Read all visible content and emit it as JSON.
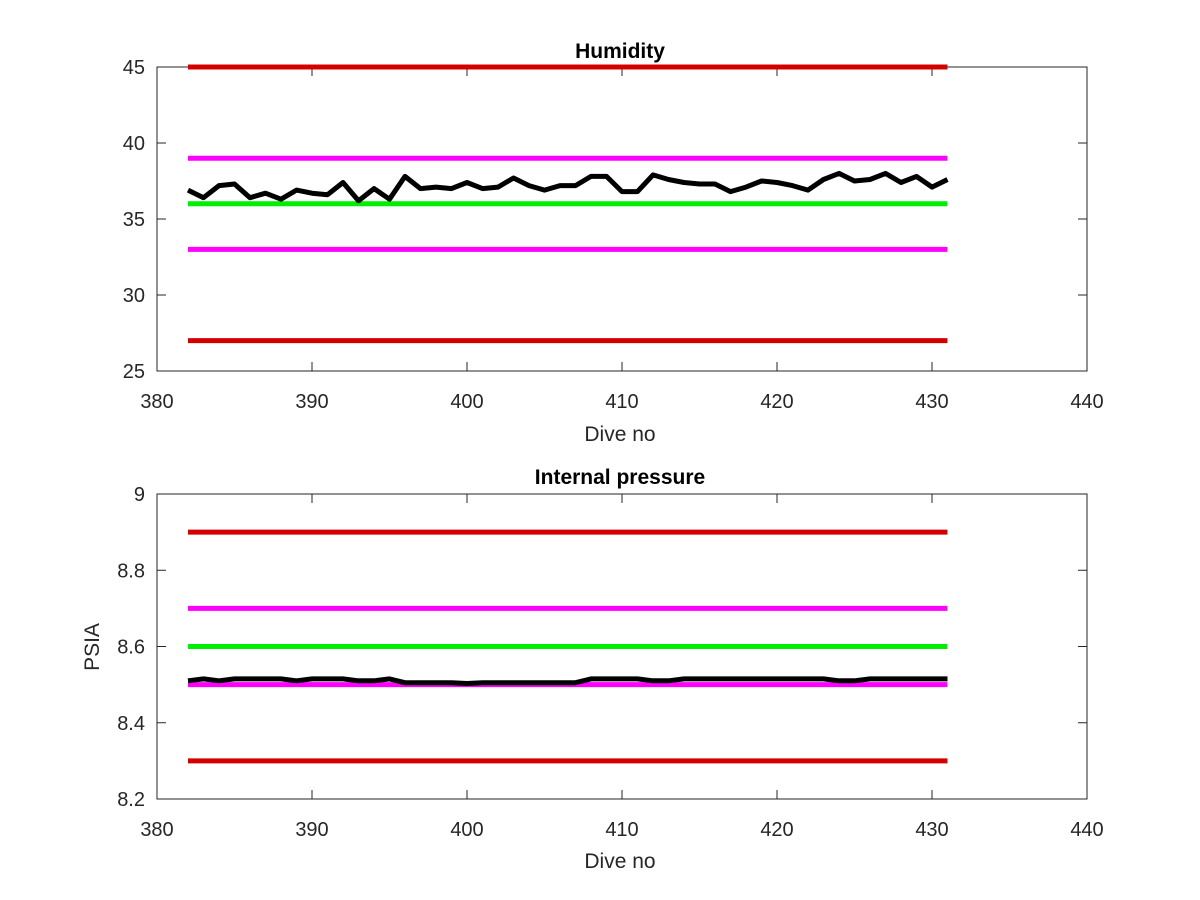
{
  "chart_data": [
    {
      "type": "line",
      "title": "Humidity",
      "xlabel": "Dive no",
      "ylabel": "",
      "xlim": [
        380,
        440
      ],
      "ylim": [
        25,
        45
      ],
      "xticks": [
        "380",
        "390",
        "400",
        "410",
        "420",
        "430",
        "440"
      ],
      "yticks": [
        "25",
        "30",
        "35",
        "40",
        "45"
      ],
      "grid": false,
      "series": [
        {
          "color": "#d40000",
          "x": [
            382,
            431
          ],
          "values": [
            45,
            45
          ]
        },
        {
          "color": "#ff00ff",
          "x": [
            382,
            431
          ],
          "values": [
            39,
            39
          ]
        },
        {
          "color": "#00ee00",
          "x": [
            382,
            431
          ],
          "values": [
            36,
            36
          ]
        },
        {
          "color": "#ff00ff",
          "x": [
            382,
            431
          ],
          "values": [
            33,
            33
          ]
        },
        {
          "color": "#d40000",
          "x": [
            382,
            431
          ],
          "values": [
            27,
            27
          ]
        },
        {
          "color": "#000000",
          "x": [
            382,
            383,
            384,
            385,
            386,
            387,
            388,
            389,
            390,
            391,
            392,
            393,
            394,
            395,
            396,
            397,
            398,
            399,
            400,
            401,
            402,
            403,
            404,
            405,
            406,
            407,
            408,
            409,
            410,
            411,
            412,
            413,
            414,
            415,
            416,
            417,
            418,
            419,
            420,
            421,
            422,
            423,
            424,
            425,
            426,
            427,
            428,
            429,
            430,
            431
          ],
          "values": [
            36.9,
            36.4,
            37.2,
            37.3,
            36.4,
            36.7,
            36.3,
            36.9,
            36.7,
            36.6,
            37.4,
            36.2,
            37.0,
            36.3,
            37.8,
            37.0,
            37.1,
            37.0,
            37.4,
            37.0,
            37.1,
            37.7,
            37.2,
            36.9,
            37.2,
            37.2,
            37.8,
            37.8,
            36.8,
            36.8,
            37.9,
            37.6,
            37.4,
            37.3,
            37.3,
            36.8,
            37.1,
            37.5,
            37.4,
            37.2,
            36.9,
            37.6,
            38.0,
            37.5,
            37.6,
            38.0,
            37.4,
            37.8,
            37.1,
            37.6
          ]
        }
      ]
    },
    {
      "type": "line",
      "title": "Internal pressure",
      "xlabel": "Dive no",
      "ylabel": "PSIA",
      "xlim": [
        380,
        440
      ],
      "ylim": [
        8.2,
        9.0
      ],
      "xticks": [
        "380",
        "390",
        "400",
        "410",
        "420",
        "430",
        "440"
      ],
      "yticks": [
        "8.2",
        "8.4",
        "8.6",
        "8.8",
        "9"
      ],
      "grid": false,
      "series": [
        {
          "color": "#d40000",
          "x": [
            382,
            431
          ],
          "values": [
            8.9,
            8.9
          ]
        },
        {
          "color": "#ff00ff",
          "x": [
            382,
            431
          ],
          "values": [
            8.7,
            8.7
          ]
        },
        {
          "color": "#00ee00",
          "x": [
            382,
            431
          ],
          "values": [
            8.6,
            8.6
          ]
        },
        {
          "color": "#ff00ff",
          "x": [
            382,
            431
          ],
          "values": [
            8.5,
            8.5
          ]
        },
        {
          "color": "#d40000",
          "x": [
            382,
            431
          ],
          "values": [
            8.3,
            8.3
          ]
        },
        {
          "color": "#000000",
          "x": [
            382,
            383,
            384,
            385,
            386,
            387,
            388,
            389,
            390,
            391,
            392,
            393,
            394,
            395,
            396,
            397,
            398,
            399,
            400,
            401,
            402,
            403,
            404,
            405,
            406,
            407,
            408,
            409,
            410,
            411,
            412,
            413,
            414,
            415,
            416,
            417,
            418,
            419,
            420,
            421,
            422,
            423,
            424,
            425,
            426,
            427,
            428,
            429,
            430,
            431
          ],
          "values": [
            8.51,
            8.515,
            8.51,
            8.515,
            8.515,
            8.515,
            8.515,
            8.51,
            8.515,
            8.515,
            8.515,
            8.51,
            8.51,
            8.515,
            8.505,
            8.505,
            8.505,
            8.505,
            8.503,
            8.505,
            8.505,
            8.505,
            8.505,
            8.505,
            8.505,
            8.505,
            8.515,
            8.515,
            8.515,
            8.515,
            8.51,
            8.51,
            8.515,
            8.515,
            8.515,
            8.515,
            8.515,
            8.515,
            8.515,
            8.515,
            8.515,
            8.515,
            8.51,
            8.51,
            8.515,
            8.515,
            8.515,
            8.515,
            8.515,
            8.515
          ]
        }
      ]
    }
  ]
}
